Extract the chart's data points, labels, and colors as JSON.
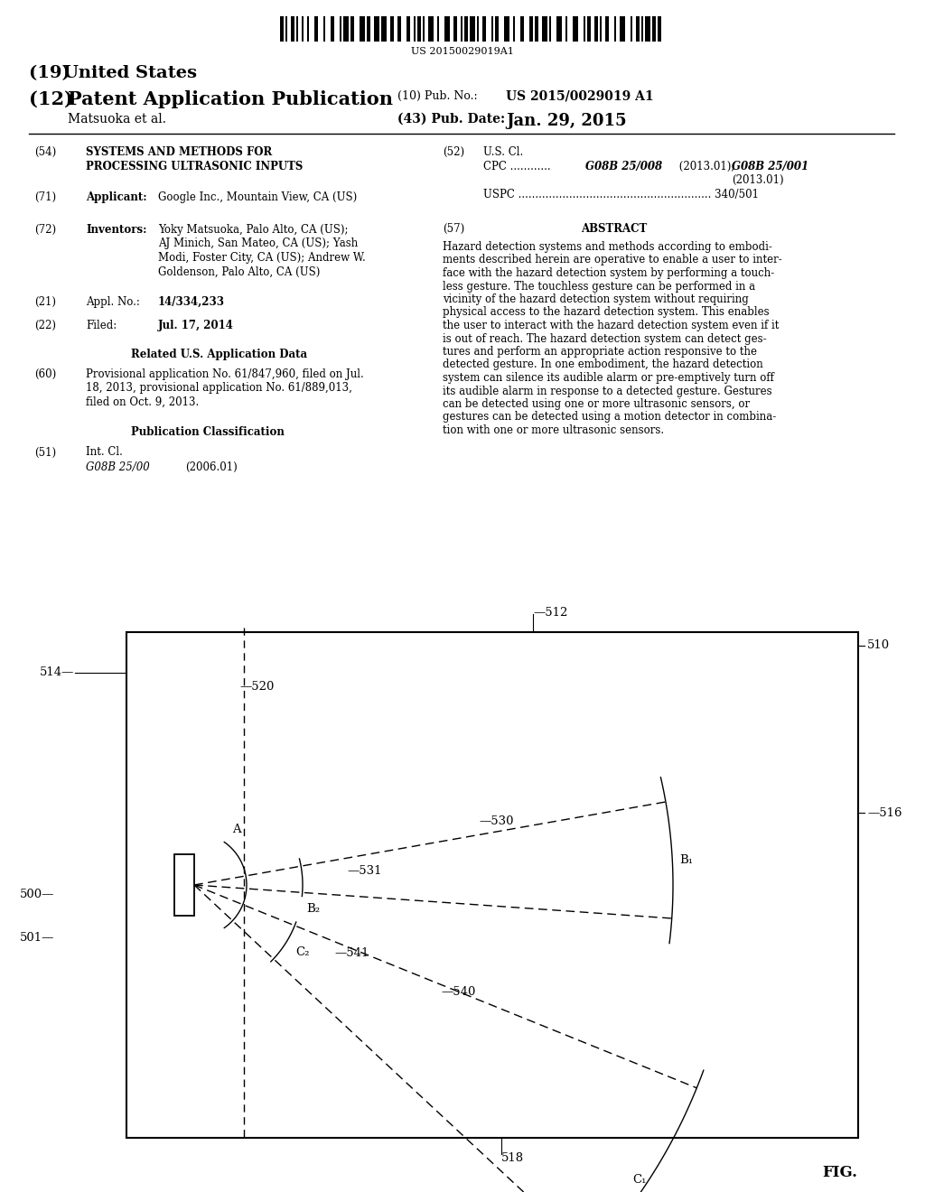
{
  "bg_color": "#ffffff",
  "text_color": "#000000",
  "barcode_text": "US 20150029019A1",
  "title_19": "(19) United States",
  "title_12": "(12) Patent Application Publication",
  "pub_no_label": "(10) Pub. No.:",
  "pub_no_val": "US 2015/0029019 A1",
  "pub_date_label": "(43) Pub. Date:",
  "pub_date_val": "Jan. 29, 2015",
  "author": "Matsuoka et al.",
  "field54_label": "(54)",
  "field54_val1": "SYSTEMS AND METHODS FOR",
  "field54_val2": "PROCESSING ULTRASONIC INPUTS",
  "field71_label": "(71)",
  "field71_key": "Applicant:",
  "field71_val": "Google Inc., Mountain View, CA (US)",
  "field72_label": "(72)",
  "field72_key": "Inventors:",
  "field72_val1": "Yoky Matsuoka, Palo Alto, CA (US);",
  "field72_val2": "AJ Minich, San Mateo, CA (US); Yash",
  "field72_val3": "Modi, Foster City, CA (US); Andrew W.",
  "field72_val4": "Goldenson, Palo Alto, CA (US)",
  "field21_label": "(21)",
  "field21_key": "Appl. No.:",
  "field21_val": "14/334,233",
  "field22_label": "(22)",
  "field22_key": "Filed:",
  "field22_val": "Jul. 17, 2014",
  "related_title": "Related U.S. Application Data",
  "field60_label": "(60)",
  "field60_val1": "Provisional application No. 61/847,960, filed on Jul.",
  "field60_val2": "18, 2013, provisional application No. 61/889,013,",
  "field60_val3": "filed on Oct. 9, 2013.",
  "pub_class_title": "Publication Classification",
  "field51_label": "(51)",
  "field51_key": "Int. Cl.",
  "field51_subkey": "G08B 25/00",
  "field51_subval": "(2006.01)",
  "field52_label": "(52)",
  "field52_key": "U.S. Cl.",
  "field52_cpc1": "CPC ............",
  "field52_cpc2": "G08B 25/008",
  "field52_cpc3": " (2013.01);",
  "field52_cpc4": "G08B 25/001",
  "field52_cpc5": "(2013.01)",
  "field52_uspc": "USPC ......................................................... 340/501",
  "field57_label": "(57)",
  "field57_title": "ABSTRACT",
  "abstract_lines": [
    "Hazard detection systems and methods according to embodi-",
    "ments described herein are operative to enable a user to inter-",
    "face with the hazard detection system by performing a touch-",
    "less gesture. The touchless gesture can be performed in a",
    "vicinity of the hazard detection system without requiring",
    "physical access to the hazard detection system. This enables",
    "the user to interact with the hazard detection system even if it",
    "is out of reach. The hazard detection system can detect ges-",
    "tures and perform an appropriate action responsive to the",
    "detected gesture. In one embodiment, the hazard detection",
    "system can silence its audible alarm or pre-emptively turn off",
    "its audible alarm in response to a detected gesture. Gestures",
    "can be detected using one or more ultrasonic sensors, or",
    "gestures can be detected using a motion detector in combina-",
    "tion with one or more ultrasonic sensors."
  ],
  "fig_label": "FIG."
}
